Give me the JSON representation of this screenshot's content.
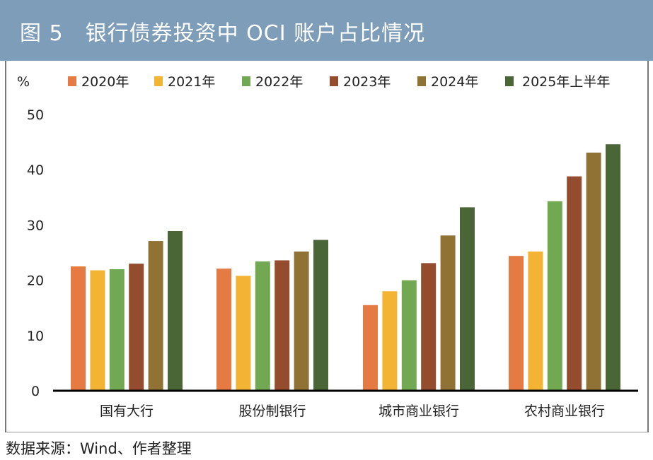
{
  "header": {
    "title": "图 5　银行债券投资中 OCI 账户占比情况"
  },
  "source": "数据来源：Wind、作者整理",
  "chart_data": {
    "type": "bar",
    "title": "图 5　银行债券投资中 OCI 账户占比情况",
    "ylabel": "%",
    "xlabel": "",
    "ylim": [
      0,
      50
    ],
    "yticks": [
      0,
      10,
      20,
      30,
      40,
      50
    ],
    "grid": false,
    "legend_position": "top",
    "categories": [
      "国有大行",
      "股份制银行",
      "城市商业银行",
      "农村商业银行"
    ],
    "series": [
      {
        "name": "2020年",
        "color": "#e57a43",
        "values": [
          22.5,
          22.1,
          15.5,
          24.4
        ]
      },
      {
        "name": "2021年",
        "color": "#f3b434",
        "values": [
          21.8,
          20.8,
          18.0,
          25.2
        ]
      },
      {
        "name": "2022年",
        "color": "#73a853",
        "values": [
          22.0,
          23.4,
          20.0,
          34.3
        ]
      },
      {
        "name": "2023年",
        "color": "#944c2e",
        "values": [
          23.0,
          23.6,
          23.1,
          38.8
        ]
      },
      {
        "name": "2024年",
        "color": "#8f7234",
        "values": [
          27.1,
          25.2,
          28.1,
          43.1
        ]
      },
      {
        "name": "2025年上半年",
        "color": "#4a6637",
        "values": [
          28.9,
          27.3,
          33.2,
          44.6
        ]
      }
    ]
  }
}
